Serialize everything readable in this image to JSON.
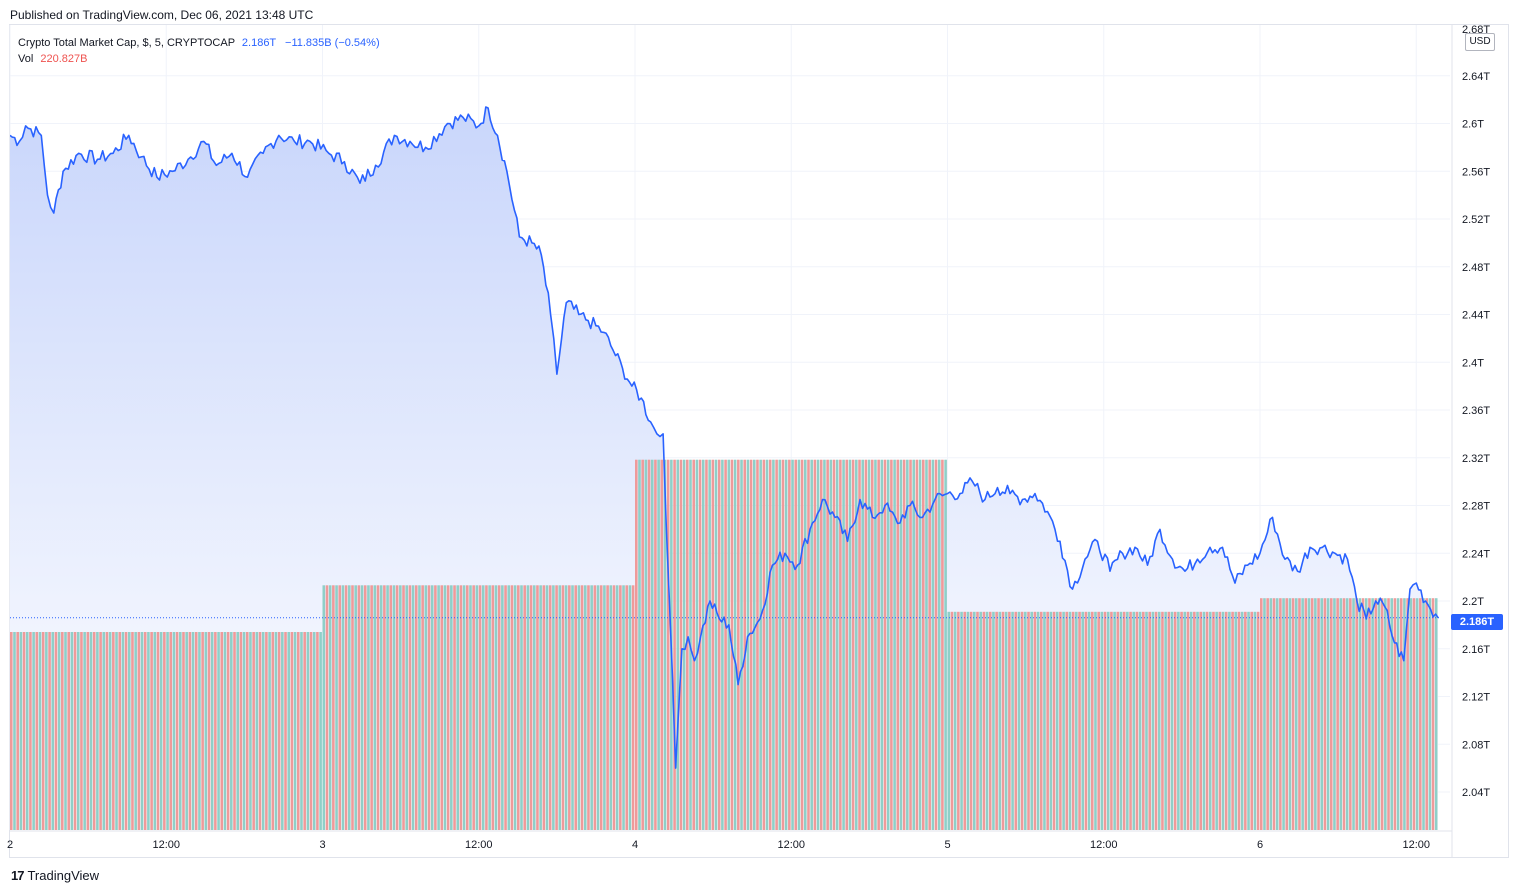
{
  "header": {
    "published_text": "Published on TradingView.com, Dec 06, 2021 13:48 UTC"
  },
  "legend": {
    "symbol_line": "Crypto Total Market Cap, $, 5, CRYPTOCAP",
    "last_price": "2.186T",
    "change": "−11.835B (−0.54%)",
    "vol_label": "Vol",
    "vol_value": "220.827B"
  },
  "price_axis": {
    "currency": "USD",
    "current_price_tag": "2.186T",
    "top_cut_label": "2.68T"
  },
  "footer": {
    "brand": "TradingView",
    "brand_mark": "17"
  },
  "colors": {
    "line": "#2962ff",
    "area_top": "#c9d6fb",
    "area_bottom": "#ffffff",
    "vol_up": "#8fcfc8",
    "vol_down": "#ef9a9a",
    "grid": "#f0f3fa",
    "axis_text": "#131722"
  },
  "chart_data": {
    "type": "area",
    "title": "Crypto Total Market Cap, $, 5, CRYPTOCAP",
    "ylabel": "USD",
    "ylim": [
      2.0,
      2.68
    ],
    "y_ticks": [
      "2.04T",
      "2.08T",
      "2.12T",
      "2.16T",
      "2.2T",
      "2.24T",
      "2.28T",
      "2.32T",
      "2.36T",
      "2.4T",
      "2.44T",
      "2.48T",
      "2.52T",
      "2.56T",
      "2.6T",
      "2.64T"
    ],
    "y_tick_values": [
      2.04,
      2.08,
      2.12,
      2.16,
      2.2,
      2.24,
      2.28,
      2.32,
      2.36,
      2.4,
      2.44,
      2.48,
      2.52,
      2.56,
      2.6,
      2.64
    ],
    "x_ticks": [
      {
        "label": "2",
        "t": 0
      },
      {
        "label": "12:00",
        "t": 0.5
      },
      {
        "label": "3",
        "t": 1
      },
      {
        "label": "12:00",
        "t": 1.5
      },
      {
        "label": "4",
        "t": 2
      },
      {
        "label": "12:00",
        "t": 2.5
      },
      {
        "label": "5",
        "t": 3
      },
      {
        "label": "12:00",
        "t": 3.5
      },
      {
        "label": "6",
        "t": 4
      },
      {
        "label": "12:00",
        "t": 4.5
      }
    ],
    "x_unit": "days since Dec 2 00:00",
    "series": [
      {
        "name": "Crypto Total Market Cap",
        "points": [
          [
            0.0,
            2.59
          ],
          [
            0.03,
            2.585
          ],
          [
            0.05,
            2.598
          ],
          [
            0.1,
            2.59
          ],
          [
            0.12,
            2.54
          ],
          [
            0.14,
            2.525
          ],
          [
            0.17,
            2.56
          ],
          [
            0.22,
            2.575
          ],
          [
            0.28,
            2.57
          ],
          [
            0.33,
            2.575
          ],
          [
            0.38,
            2.59
          ],
          [
            0.42,
            2.572
          ],
          [
            0.47,
            2.555
          ],
          [
            0.52,
            2.56
          ],
          [
            0.57,
            2.57
          ],
          [
            0.62,
            2.585
          ],
          [
            0.66,
            2.565
          ],
          [
            0.71,
            2.575
          ],
          [
            0.76,
            2.555
          ],
          [
            0.81,
            2.575
          ],
          [
            0.86,
            2.59
          ],
          [
            0.91,
            2.585
          ],
          [
            0.96,
            2.585
          ],
          [
            1.02,
            2.575
          ],
          [
            1.07,
            2.568
          ],
          [
            1.12,
            2.55
          ],
          [
            1.17,
            2.565
          ],
          [
            1.23,
            2.59
          ],
          [
            1.28,
            2.585
          ],
          [
            1.33,
            2.58
          ],
          [
            1.4,
            2.6
          ],
          [
            1.45,
            2.605
          ],
          [
            1.5,
            2.598
          ],
          [
            1.53,
            2.613
          ],
          [
            1.56,
            2.59
          ],
          [
            1.59,
            2.56
          ],
          [
            1.63,
            2.505
          ],
          [
            1.67,
            2.5
          ],
          [
            1.7,
            2.49
          ],
          [
            1.73,
            2.44
          ],
          [
            1.75,
            2.39
          ],
          [
            1.78,
            2.45
          ],
          [
            1.82,
            2.44
          ],
          [
            1.85,
            2.435
          ],
          [
            1.9,
            2.425
          ],
          [
            1.93,
            2.41
          ],
          [
            1.96,
            2.395
          ],
          [
            1.99,
            2.38
          ],
          [
            2.02,
            2.37
          ],
          [
            2.05,
            2.35
          ],
          [
            2.07,
            2.34
          ],
          [
            2.09,
            2.34
          ],
          [
            2.11,
            2.2
          ],
          [
            2.13,
            2.06
          ],
          [
            2.15,
            2.16
          ],
          [
            2.17,
            2.17
          ],
          [
            2.19,
            2.15
          ],
          [
            2.21,
            2.17
          ],
          [
            2.24,
            2.2
          ],
          [
            2.27,
            2.185
          ],
          [
            2.3,
            2.18
          ],
          [
            2.33,
            2.13
          ],
          [
            2.36,
            2.17
          ],
          [
            2.4,
            2.185
          ],
          [
            2.44,
            2.23
          ],
          [
            2.48,
            2.24
          ],
          [
            2.52,
            2.23
          ],
          [
            2.56,
            2.26
          ],
          [
            2.6,
            2.285
          ],
          [
            2.64,
            2.27
          ],
          [
            2.68,
            2.25
          ],
          [
            2.72,
            2.285
          ],
          [
            2.76,
            2.27
          ],
          [
            2.8,
            2.28
          ],
          [
            2.84,
            2.265
          ],
          [
            2.88,
            2.28
          ],
          [
            2.92,
            2.27
          ],
          [
            2.96,
            2.285
          ],
          [
            3.0,
            2.29
          ],
          [
            3.04,
            2.29
          ],
          [
            3.08,
            2.3
          ],
          [
            3.12,
            2.285
          ],
          [
            3.16,
            2.295
          ],
          [
            3.2,
            2.29
          ],
          [
            3.24,
            2.285
          ],
          [
            3.28,
            2.29
          ],
          [
            3.32,
            2.275
          ],
          [
            3.36,
            2.25
          ],
          [
            3.4,
            2.21
          ],
          [
            3.44,
            2.235
          ],
          [
            3.48,
            2.25
          ],
          [
            3.52,
            2.225
          ],
          [
            3.56,
            2.24
          ],
          [
            3.6,
            2.245
          ],
          [
            3.64,
            2.23
          ],
          [
            3.68,
            2.26
          ],
          [
            3.72,
            2.235
          ],
          [
            3.76,
            2.225
          ],
          [
            3.8,
            2.235
          ],
          [
            3.84,
            2.245
          ],
          [
            3.88,
            2.245
          ],
          [
            3.92,
            2.215
          ],
          [
            3.96,
            2.23
          ],
          [
            4.0,
            2.24
          ],
          [
            4.04,
            2.27
          ],
          [
            4.08,
            2.235
          ],
          [
            4.12,
            2.225
          ],
          [
            4.16,
            2.245
          ],
          [
            4.2,
            2.245
          ],
          [
            4.24,
            2.24
          ],
          [
            4.28,
            2.235
          ],
          [
            4.31,
            2.2
          ],
          [
            4.34,
            2.185
          ],
          [
            4.37,
            2.2
          ],
          [
            4.4,
            2.195
          ],
          [
            4.43,
            2.165
          ],
          [
            4.46,
            2.15
          ],
          [
            4.48,
            2.21
          ],
          [
            4.5,
            2.215
          ],
          [
            4.53,
            2.2
          ],
          [
            4.57,
            2.186
          ]
        ]
      },
      {
        "name": "Vol",
        "note": "daily volume bars drawn as colored columns",
        "daily_levels": [
          {
            "day": 2,
            "relative_height": 0.246
          },
          {
            "day": 3,
            "relative_height": 0.304
          },
          {
            "day": 4,
            "relative_height": 0.46
          },
          {
            "day": 5,
            "relative_height": 0.271
          },
          {
            "day": 6,
            "relative_height": 0.288
          }
        ]
      }
    ],
    "last_value": 2.186,
    "grid": true
  }
}
